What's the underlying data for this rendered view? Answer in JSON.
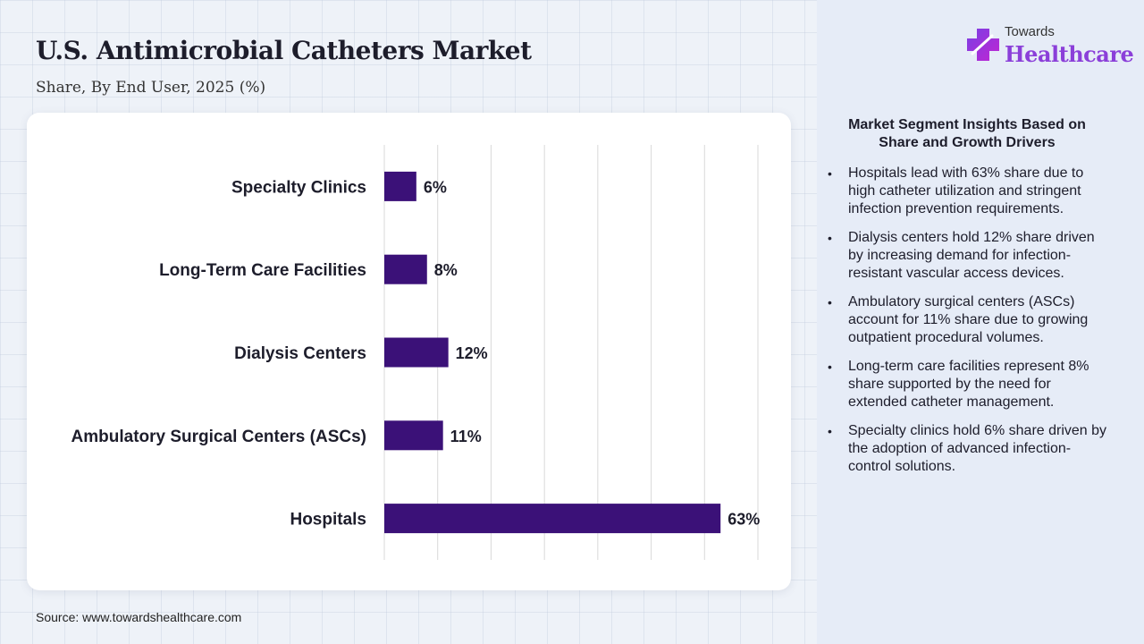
{
  "header": {
    "title": "U.S. Antimicrobial Catheters Market",
    "subtitle": "Share, By End User, 2025 (%)"
  },
  "chart_data": {
    "type": "bar",
    "orientation": "horizontal",
    "categories": [
      "Specialty Clinics",
      "Long-Term Care Facilities",
      "Dialysis Centers",
      "Ambulatory Surgical Centers (ASCs)",
      "Hospitals"
    ],
    "values": [
      6,
      8,
      12,
      11,
      63
    ],
    "value_labels": [
      "6%",
      "8%",
      "12%",
      "11%",
      "63%"
    ],
    "xlim": [
      0,
      70
    ],
    "grid": true,
    "bar_color": "#3b1178"
  },
  "source": "Source: www.towardshealthcare.com",
  "logo": {
    "line1": "Towards",
    "line2": "Healthcare",
    "icon": "medical-cross-icon",
    "colors": [
      "#7b3fe4",
      "#c026d3"
    ]
  },
  "insights": {
    "title": "Market Segment Insights Based on Share and Growth Drivers",
    "items": [
      "Hospitals lead with 63% share due to high catheter utilization and stringent infection prevention requirements.",
      "Dialysis centers hold 12% share driven by increasing demand for infection-resistant vascular access devices.",
      "Ambulatory surgical centers (ASCs) account for 11% share due to growing outpatient procedural volumes.",
      "Long-term care facilities represent 8% share supported by the need for extended catheter management.",
      "Specialty clinics hold 6% share driven by the adoption of advanced infection-control solutions."
    ]
  }
}
